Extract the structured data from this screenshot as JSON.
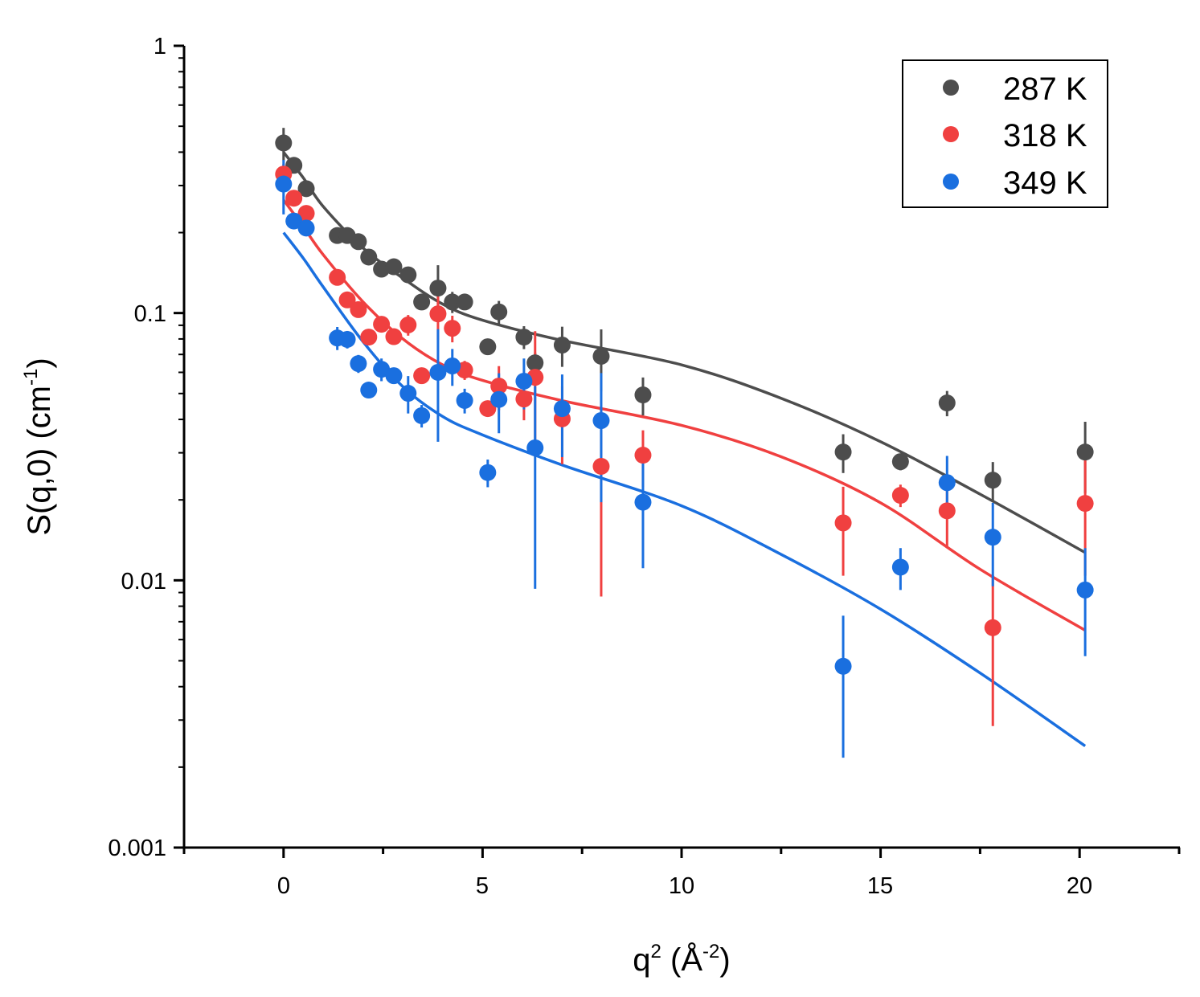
{
  "chart_data": {
    "type": "scatter",
    "title": "",
    "xlabel": "q",
    "xlabel_sup": "2",
    "xlabel_unit": " (Å",
    "xlabel_unit_sup": "-2",
    "xlabel_close": ")",
    "ylabel": "S(q,0) (cm",
    "ylabel_sup": "-1",
    "ylabel_close": ")",
    "xlim": [
      -2.5,
      22.5
    ],
    "ylim": [
      0.001,
      1
    ],
    "yscale": "log",
    "xticks": [
      "0",
      "5",
      "10",
      "15",
      "20"
    ],
    "xtick_values": [
      0,
      5,
      10,
      15,
      20
    ],
    "yticks": [
      "1",
      "0.1",
      "0.01",
      "0.001"
    ],
    "ytick_values": [
      1,
      0.1,
      0.01,
      0.001
    ],
    "legend_position": "top-right",
    "x": [
      0,
      0.26,
      0.57,
      1.35,
      1.6,
      1.88,
      2.14,
      2.46,
      2.77,
      3.13,
      3.47,
      3.88,
      4.24,
      4.55,
      5.13,
      5.41,
      6.04,
      6.32,
      7.0,
      7.98,
      9.03,
      14.06,
      15.5,
      16.67,
      17.82,
      20.14
    ],
    "series": [
      {
        "name": "287 K",
        "color": "#4d4d4d",
        "values": [
          0.433,
          0.357,
          0.292,
          0.195,
          0.195,
          0.185,
          0.162,
          0.146,
          0.149,
          0.139,
          0.11,
          0.124,
          0.11,
          0.11,
          0.0748,
          0.101,
          0.0813,
          0.0651,
          0.0759,
          0.0689,
          0.0494,
          0.0302,
          0.0278,
          0.0461,
          0.0237,
          0.0302
        ],
        "errors": [
          0.06,
          0.01,
          0.01,
          0.008,
          0.008,
          0.008,
          0.006,
          0.006,
          0.006,
          0.006,
          0.005,
          0.027,
          0.01,
          0.005,
          0.003,
          0.01,
          0.008,
          0.006,
          0.013,
          0.018,
          0.008,
          0.005,
          0.002,
          0.005,
          0.004,
          0.009
        ],
        "fit_x": [
          0,
          0.5,
          1,
          2,
          3,
          4,
          5,
          7,
          10,
          12.5,
          15,
          17.5,
          20.14
        ],
        "fit_y": [
          0.4,
          0.32,
          0.25,
          0.175,
          0.135,
          0.108,
          0.094,
          0.079,
          0.064,
          0.048,
          0.033,
          0.021,
          0.0127
        ]
      },
      {
        "name": "318 K",
        "color": "#f04040",
        "values": [
          0.331,
          0.269,
          0.236,
          0.136,
          0.112,
          0.103,
          0.0813,
          0.0908,
          0.0816,
          0.0903,
          0.0583,
          0.0993,
          0.0877,
          0.0612,
          0.0439,
          0.0533,
          0.0477,
          0.0575,
          0.0402,
          0.0267,
          0.0294,
          0.0164,
          0.0208,
          0.0182,
          0.00665,
          0.0194
        ],
        "errors": [
          0.03,
          0.01,
          0.01,
          0.008,
          0.006,
          0.005,
          0.004,
          0.005,
          0.004,
          0.008,
          0.004,
          0.02,
          0.01,
          0.005,
          0.003,
          0.01,
          0.008,
          0.028,
          0.013,
          0.018,
          0.007,
          0.006,
          0.002,
          0.005,
          0.0038,
          0.009
        ],
        "fit_x": [
          0,
          0.5,
          1,
          2,
          3,
          4,
          5,
          7,
          10,
          12.5,
          15,
          17.5,
          20.14
        ],
        "fit_y": [
          0.265,
          0.21,
          0.165,
          0.11,
          0.08,
          0.064,
          0.056,
          0.047,
          0.038,
          0.029,
          0.0195,
          0.011,
          0.0065
        ]
      },
      {
        "name": "349 K",
        "color": "#1a6fdf",
        "values": [
          0.304,
          0.221,
          0.208,
          0.0807,
          0.0797,
          0.0647,
          0.0515,
          0.0616,
          0.0583,
          0.0501,
          0.0413,
          0.06,
          0.0634,
          0.0471,
          0.0253,
          0.0475,
          0.0556,
          0.0313,
          0.0439,
          0.0396,
          0.0196,
          0.00477,
          0.0112,
          0.0232,
          0.0145,
          0.0092
        ],
        "errors": [
          0.07,
          0.01,
          0.01,
          0.008,
          0.006,
          0.005,
          0.003,
          0.006,
          0.004,
          0.008,
          0.004,
          0.027,
          0.01,
          0.005,
          0.003,
          0.012,
          0.012,
          0.022,
          0.015,
          0.02,
          0.0085,
          0.0026,
          0.002,
          0.006,
          0.005,
          0.004
        ],
        "fit_x": [
          0,
          0.5,
          1,
          2,
          3,
          4,
          5,
          7,
          10,
          12.5,
          15,
          17.5,
          20.14
        ],
        "fit_y": [
          0.2,
          0.16,
          0.125,
          0.078,
          0.053,
          0.041,
          0.035,
          0.027,
          0.019,
          0.0125,
          0.0078,
          0.0045,
          0.0024
        ]
      }
    ]
  }
}
